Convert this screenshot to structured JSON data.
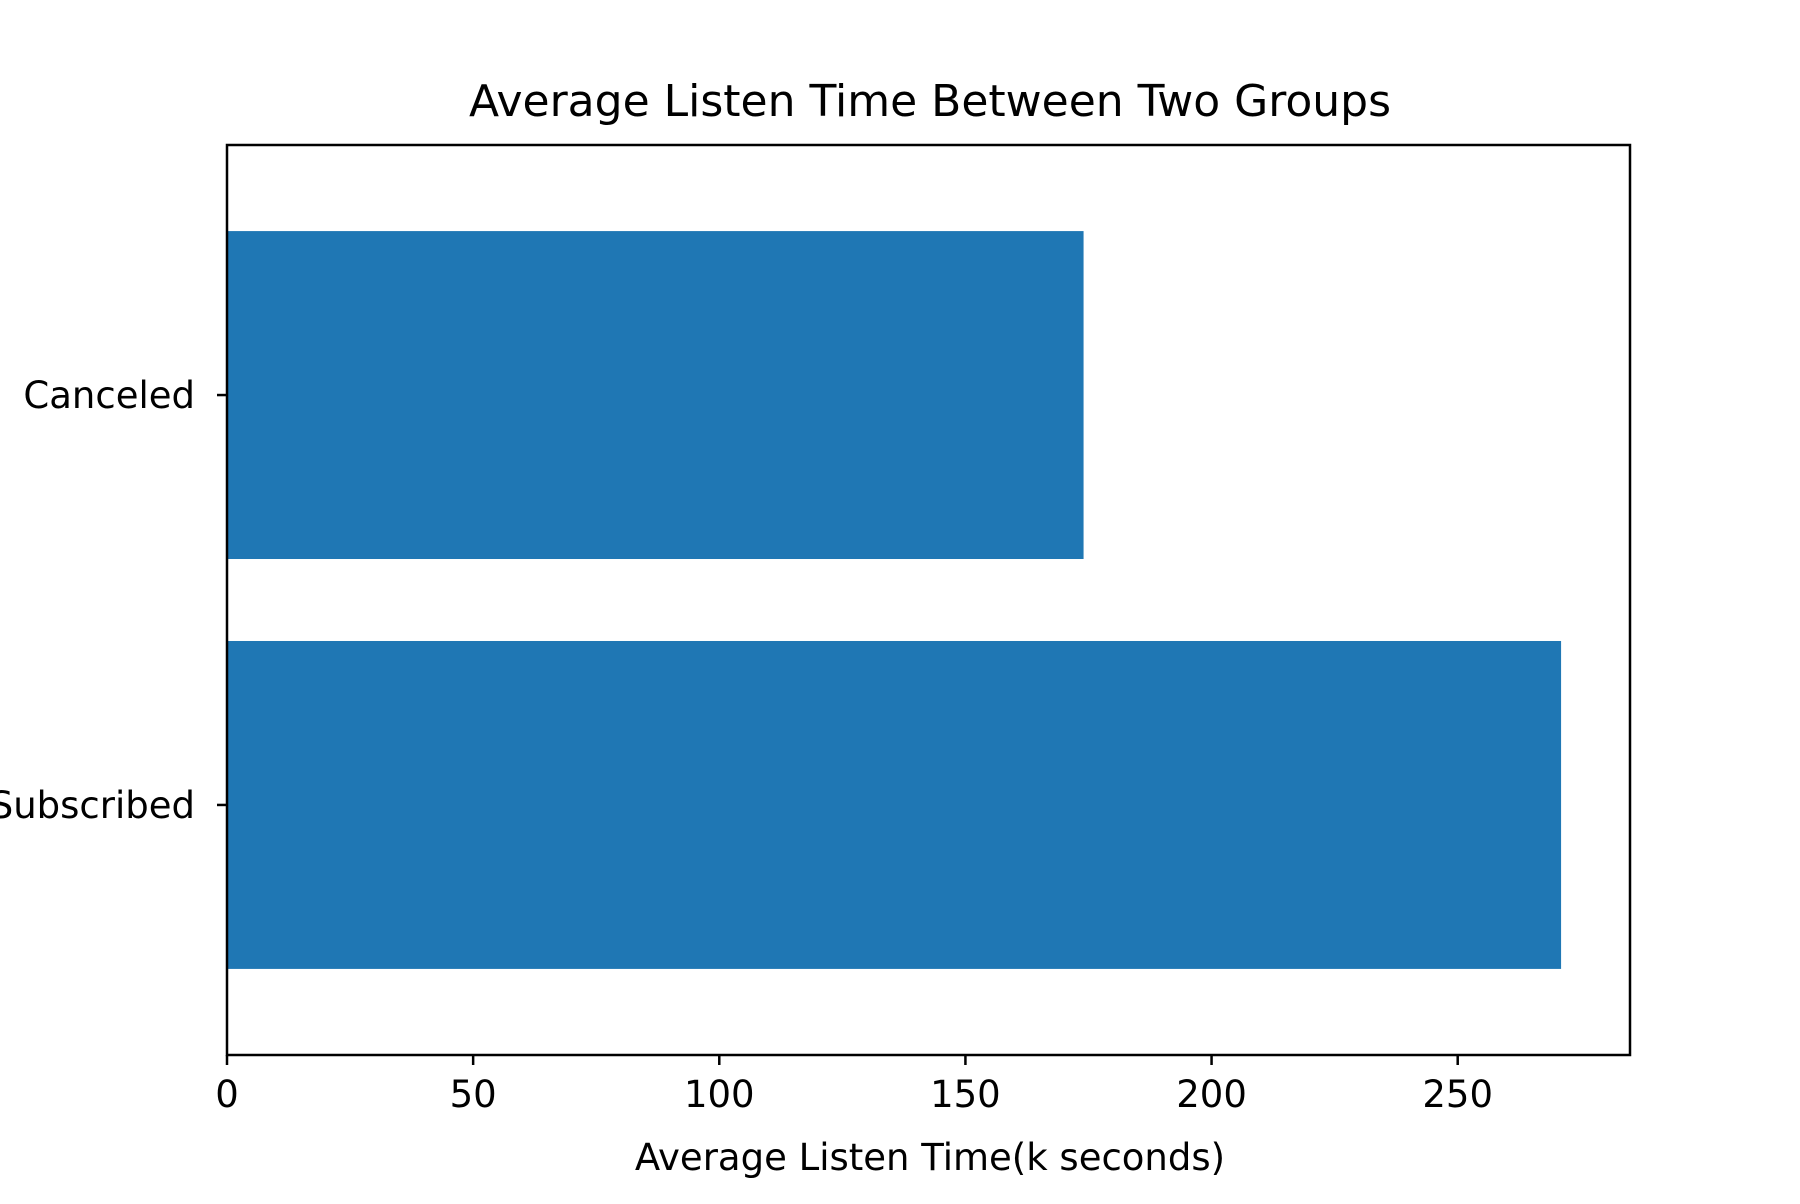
{
  "chart_data": {
    "type": "bar",
    "orientation": "horizontal",
    "title": "Average Listen Time Between Two Groups",
    "xlabel": "Average Listen Time(k seconds)",
    "ylabel": "",
    "categories": [
      "Canceled",
      "Subscribed"
    ],
    "values": [
      174,
      271
    ],
    "xlim": [
      0,
      285
    ],
    "xticks": [
      0,
      50,
      100,
      150,
      200,
      250
    ],
    "xtick_labels": [
      "0",
      "50",
      "100",
      "150",
      "200",
      "250"
    ],
    "grid": false,
    "legend": "none",
    "colors": {
      "bar": "#1f77b4",
      "axis": "#000000",
      "background": "#ffffff"
    }
  }
}
